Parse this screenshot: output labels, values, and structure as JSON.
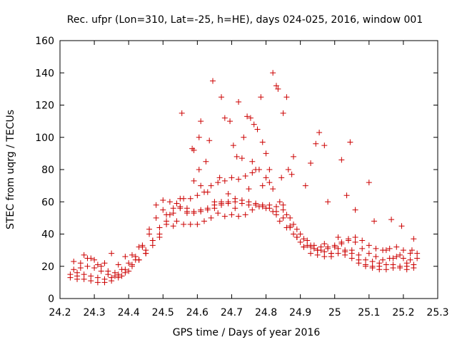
{
  "chart_data": {
    "type": "scatter",
    "title": "Rec. ufpr (Lon=310, Lat=-25, h=HE), days 024-025, 2016, window 001",
    "xlabel": "GPS time / Days of year 2016",
    "ylabel": "STEC from uqrg / TECUs",
    "xlim": [
      24.2,
      25.3
    ],
    "ylim": [
      0,
      160
    ],
    "xticks": [
      "24.2",
      "24.3",
      "24.4",
      "24.5",
      "24.6",
      "24.7",
      "24.8",
      "24.9",
      "25",
      "25.1",
      "25.2",
      "25.3"
    ],
    "yticks": [
      "0",
      "20",
      "40",
      "60",
      "80",
      "100",
      "120",
      "140",
      "160"
    ],
    "grid": false,
    "legend": "none",
    "marker": "plus",
    "color": "#cc0000",
    "series": [
      {
        "x": [
          24.23,
          24.25,
          24.27,
          24.29,
          24.31,
          24.33,
          24.35,
          24.37,
          24.39,
          24.41,
          24.43,
          24.45,
          24.47,
          24.49,
          24.51,
          24.53,
          24.55,
          24.57,
          24.59,
          24.61,
          24.63,
          24.65,
          24.67,
          24.69,
          24.71,
          24.73,
          24.75,
          24.77,
          24.79,
          24.81,
          24.83,
          24.85,
          24.87,
          24.89,
          24.91,
          24.93,
          24.95,
          24.97,
          24.99,
          25.01,
          25.03,
          25.05,
          25.07,
          25.09,
          25.11,
          25.13,
          25.15,
          25.17,
          25.19,
          25.21,
          25.23,
          24.23,
          24.25,
          24.27,
          24.29,
          24.31,
          24.33,
          24.35,
          24.37,
          24.39,
          24.41,
          24.43,
          24.45,
          24.47,
          24.49,
          24.51,
          24.53,
          24.55,
          24.57,
          24.59,
          24.61,
          24.63,
          24.65,
          24.67,
          24.69,
          24.71,
          24.73,
          24.75,
          24.77,
          24.79,
          24.81,
          24.83,
          24.85,
          24.87,
          24.89,
          24.91,
          24.93,
          24.95,
          24.97,
          24.99,
          25.01,
          25.03,
          25.05,
          25.07,
          25.09,
          25.11,
          25.13,
          25.15,
          25.17,
          25.19,
          25.21,
          25.23,
          24.24,
          24.26,
          24.28,
          24.3,
          24.32,
          24.34,
          24.36,
          24.38,
          24.4,
          24.42,
          24.44,
          24.46,
          24.48,
          24.5,
          24.52,
          24.54,
          24.56,
          24.58,
          24.6,
          24.62,
          24.64,
          24.66,
          24.68,
          24.7,
          24.72,
          24.74,
          24.76,
          24.78,
          24.8,
          24.82,
          24.84,
          24.86,
          24.88,
          24.9,
          24.92,
          24.94,
          24.96,
          24.98,
          25.0,
          25.02,
          25.04,
          25.06,
          25.08,
          25.1,
          25.12,
          25.14,
          25.16,
          25.18,
          25.2,
          25.22,
          25.24,
          24.24,
          24.26,
          24.28,
          24.3,
          24.32,
          24.34,
          24.36,
          24.38,
          24.4,
          24.42,
          24.44,
          24.46,
          24.48,
          24.5,
          24.52,
          24.54,
          24.56,
          24.58,
          24.6,
          24.62,
          24.64,
          24.66,
          24.68,
          24.7,
          24.72,
          24.74,
          24.76,
          24.78,
          24.8,
          24.82,
          24.84,
          24.86,
          24.88,
          24.9,
          24.92,
          24.94,
          24.96,
          24.98,
          25.0,
          25.02,
          25.04,
          25.06,
          25.08,
          25.1,
          25.12,
          25.14,
          25.16,
          25.18,
          25.2,
          25.22,
          25.24,
          24.25,
          24.29,
          24.33,
          24.37,
          24.41,
          24.45,
          24.49,
          24.53,
          24.57,
          24.61,
          24.65,
          24.69,
          24.73,
          24.77,
          24.81,
          24.85,
          24.89,
          24.93,
          24.97,
          25.01,
          25.05,
          25.09,
          25.13,
          25.17,
          25.21,
          24.27,
          24.31,
          24.35,
          24.39,
          24.43,
          24.47,
          24.51,
          24.55,
          24.59,
          24.63,
          24.67,
          24.71,
          24.75,
          24.79,
          24.83,
          24.87,
          24.91,
          24.95,
          24.99,
          25.03,
          25.07,
          25.11,
          25.15,
          25.19,
          25.23,
          24.555,
          24.605,
          24.61,
          24.625,
          24.645,
          24.665,
          24.705,
          24.715,
          24.735,
          24.76,
          24.775,
          24.79,
          24.8,
          24.81,
          24.835,
          24.845,
          24.85,
          24.865,
          24.875,
          24.93,
          24.945,
          24.97,
          25.02,
          25.045,
          25.1,
          24.585,
          24.59,
          24.605,
          24.635,
          24.67,
          24.68,
          24.695,
          24.72,
          24.745,
          24.755,
          24.765,
          24.785,
          24.82,
          24.83,
          24.86,
          24.88,
          24.915,
          24.955,
          24.98,
          25.035,
          25.06,
          25.115,
          25.165,
          25.195,
          25.225
        ],
        "y": [
          15,
          14,
          15,
          14,
          13,
          12,
          13,
          15,
          18,
          21,
          24,
          28,
          33,
          40,
          46,
          53,
          57,
          56,
          54,
          55,
          56,
          58,
          59,
          60,
          62,
          61,
          60,
          59,
          58,
          58,
          57,
          55,
          50,
          43,
          37,
          33,
          30,
          29,
          28,
          31,
          30,
          28,
          24,
          21,
          20,
          20,
          21,
          21,
          20,
          20,
          21,
          13,
          12,
          12,
          11,
          10,
          10,
          11,
          13,
          16,
          20,
          24,
          28,
          36,
          44,
          52,
          56,
          56,
          54,
          53,
          54,
          55,
          56,
          58,
          59,
          60,
          59,
          58,
          58,
          57,
          56,
          54,
          50,
          45,
          38,
          32,
          28,
          27,
          26,
          26,
          28,
          27,
          25,
          22,
          20,
          19,
          18,
          18,
          19,
          19,
          18,
          19,
          23,
          22,
          25,
          24,
          20,
          17,
          16,
          18,
          22,
          26,
          33,
          40,
          50,
          55,
          52,
          48,
          46,
          46,
          46,
          48,
          50,
          53,
          51,
          52,
          51,
          52,
          55,
          57,
          56,
          54,
          48,
          44,
          40,
          35,
          33,
          31,
          30,
          31,
          32,
          34,
          36,
          35,
          31,
          28,
          26,
          24,
          25,
          26,
          25,
          24,
          25,
          18,
          19,
          20,
          19,
          17,
          15,
          14,
          14,
          17,
          24,
          32,
          43,
          58,
          61,
          60,
          59,
          62,
          62,
          64,
          66,
          70,
          72,
          73,
          75,
          74,
          76,
          78,
          80,
          75,
          68,
          60,
          52,
          46,
          40,
          36,
          33,
          32,
          32,
          33,
          35,
          37,
          38,
          36,
          33,
          31,
          30,
          31,
          32,
          30,
          28,
          28,
          16,
          25,
          22,
          21,
          27,
          30,
          38,
          45,
          53,
          70,
          60,
          65,
          87,
          80,
          72,
          58,
          38,
          32,
          34,
          38,
          30,
          24,
          22,
          25,
          22,
          27,
          21,
          28,
          26,
          32,
          36,
          48,
          62,
          73,
          66,
          60,
          56,
          68,
          70,
          52,
          44,
          32,
          30,
          28,
          29,
          27,
          23,
          30,
          27,
          37,
          115,
          80,
          110,
          85,
          135,
          75,
          95,
          88,
          100,
          85,
          105,
          97,
          90,
          80,
          130,
          75,
          115,
          80,
          77,
          84,
          96,
          95,
          86,
          97,
          72,
          93,
          92,
          100,
          98,
          125,
          112,
          110,
          122,
          113,
          112,
          108,
          125,
          140,
          132,
          125,
          88,
          70,
          103,
          60,
          64,
          55,
          48,
          49,
          45,
          30
        ]
      }
    ]
  }
}
